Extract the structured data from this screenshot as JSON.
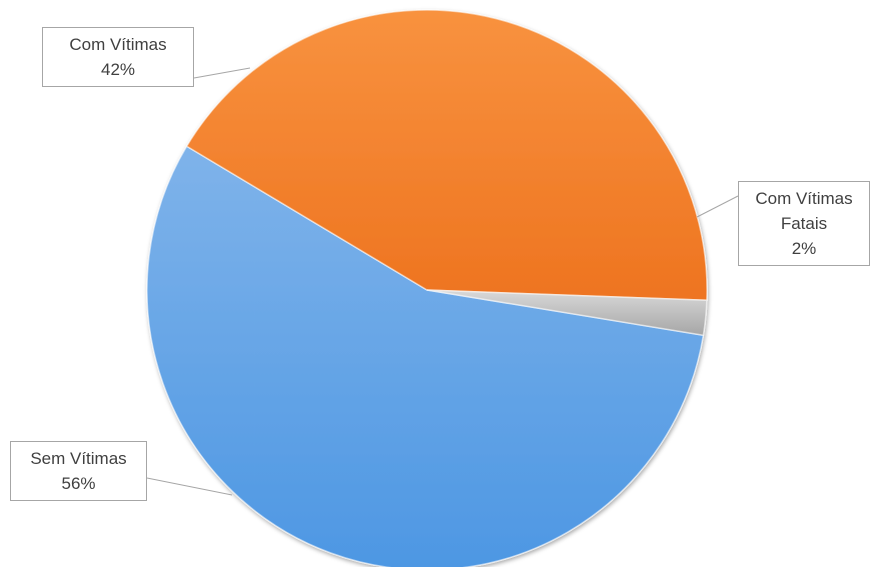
{
  "chart_data": {
    "type": "pie",
    "slices": [
      {
        "label": "Sem Vítimas",
        "value": 56,
        "percent_text": "56%",
        "color": "#5b9fe4"
      },
      {
        "label": "Com Vítimas",
        "value": 42,
        "percent_text": "42%",
        "color": "#f47b28"
      },
      {
        "label_lines": [
          "Com Vítimas",
          "Fatais"
        ],
        "label": "Com Vítimas Fatais",
        "value": 2,
        "percent_text": "2%",
        "color": "#bfbfbf"
      }
    ],
    "legend": "none",
    "data_labels": "callouts"
  },
  "callouts": {
    "sem": {
      "line1": "Sem Vítimas",
      "line2": "56%"
    },
    "com": {
      "line1": "Com Vítimas",
      "line2": "42%"
    },
    "fatais": {
      "line1": "Com Vítimas",
      "line2": "Fatais",
      "line3": "2%"
    }
  }
}
